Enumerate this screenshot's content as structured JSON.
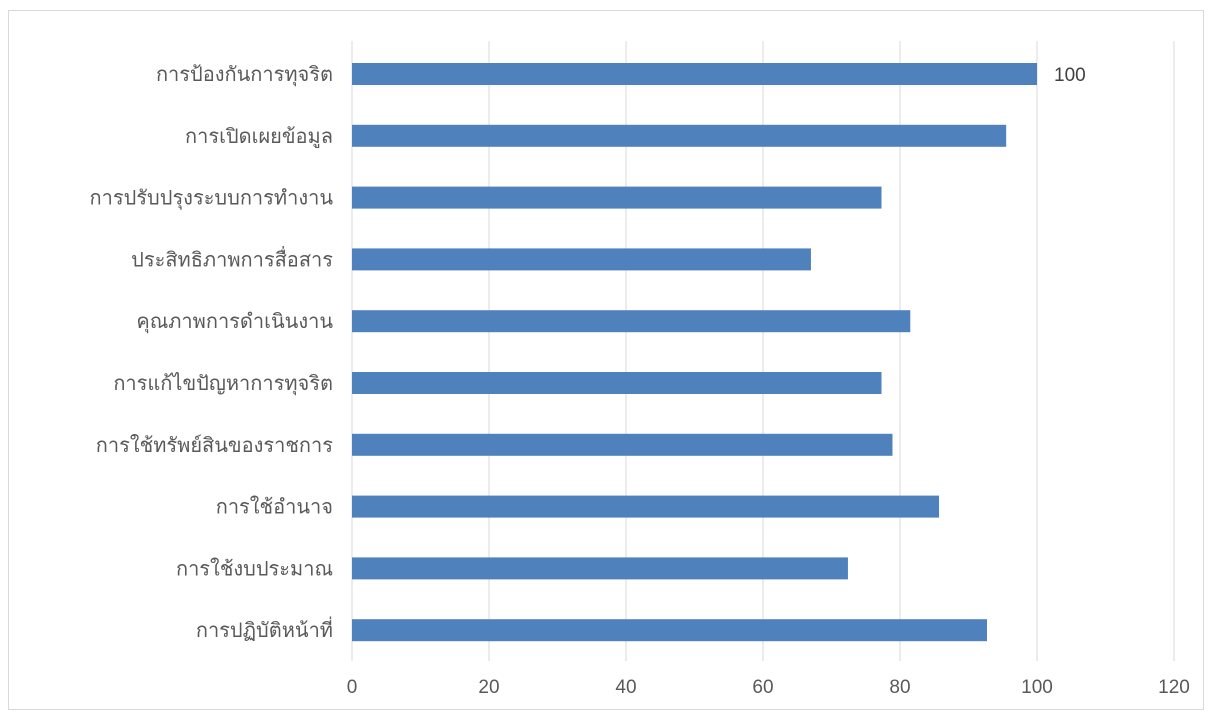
{
  "chart_data": {
    "type": "bar",
    "orientation": "horizontal",
    "title": "",
    "xlabel": "",
    "ylabel": "",
    "categories": [
      "การป้องกันการทุจริต",
      "การเปิดเผยข้อมูล",
      "การปรับปรุงระบบการทำงาน",
      "ประสิทธิภาพการสื่อสาร",
      "คุณภาพการดำเนินงาน",
      "การแก้ไขปัญหาการทุจริต",
      "การใช้ทรัพย์สินของราชการ",
      "การใช้อำนาจ",
      "การใช้งบประมาณ",
      "การปฏิบัติหน้าที่"
    ],
    "values": [
      100,
      95.5,
      77.3,
      67,
      81.5,
      77.3,
      78.9,
      85.7,
      72.4,
      92.7
    ],
    "xlim": [
      0,
      120
    ],
    "xticks": [
      0,
      20,
      40,
      60,
      80,
      100,
      120
    ],
    "grid": "vertical",
    "legend": "none",
    "data_labels": [
      {
        "category": "การป้องกันการทุจริต",
        "text": "100"
      }
    ],
    "colors": {
      "bar": "#4f81bd",
      "grid": "#d9d9d9",
      "text": "#595959"
    }
  }
}
